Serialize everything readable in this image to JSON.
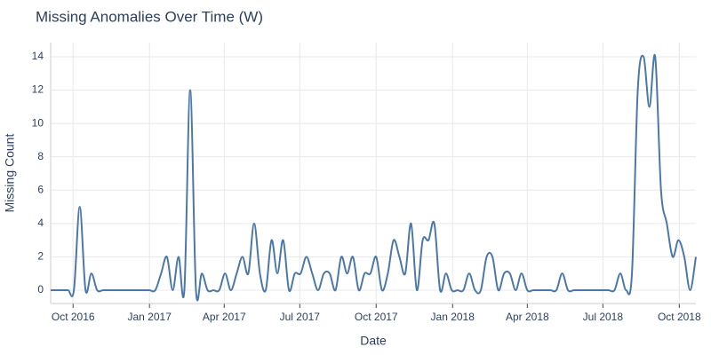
{
  "chart_data": {
    "type": "line",
    "title": "Missing Anomalies Over Time (W)",
    "xlabel": "Date",
    "ylabel": "Missing Count",
    "x": [
      "2016-09-04",
      "2016-09-11",
      "2016-09-18",
      "2016-09-25",
      "2016-10-02",
      "2016-10-09",
      "2016-10-16",
      "2016-10-23",
      "2016-10-30",
      "2016-11-06",
      "2016-11-13",
      "2016-11-20",
      "2016-11-27",
      "2016-12-04",
      "2016-12-11",
      "2016-12-18",
      "2016-12-25",
      "2017-01-01",
      "2017-01-08",
      "2017-01-15",
      "2017-01-22",
      "2017-01-29",
      "2017-02-05",
      "2017-02-12",
      "2017-02-19",
      "2017-02-26",
      "2017-03-05",
      "2017-03-12",
      "2017-03-19",
      "2017-03-26",
      "2017-04-02",
      "2017-04-09",
      "2017-04-16",
      "2017-04-23",
      "2017-04-30",
      "2017-05-07",
      "2017-05-14",
      "2017-05-21",
      "2017-05-28",
      "2017-06-04",
      "2017-06-11",
      "2017-06-18",
      "2017-06-25",
      "2017-07-02",
      "2017-07-09",
      "2017-07-16",
      "2017-07-23",
      "2017-07-30",
      "2017-08-06",
      "2017-08-13",
      "2017-08-20",
      "2017-08-27",
      "2017-09-03",
      "2017-09-10",
      "2017-09-17",
      "2017-09-24",
      "2017-10-01",
      "2017-10-08",
      "2017-10-15",
      "2017-10-22",
      "2017-10-29",
      "2017-11-05",
      "2017-11-12",
      "2017-11-19",
      "2017-11-26",
      "2017-12-03",
      "2017-12-10",
      "2017-12-17",
      "2017-12-24",
      "2017-12-31",
      "2018-01-07",
      "2018-01-14",
      "2018-01-21",
      "2018-01-28",
      "2018-02-04",
      "2018-02-11",
      "2018-02-18",
      "2018-02-25",
      "2018-03-04",
      "2018-03-11",
      "2018-03-18",
      "2018-03-25",
      "2018-04-01",
      "2018-04-08",
      "2018-04-15",
      "2018-04-22",
      "2018-04-29",
      "2018-05-06",
      "2018-05-13",
      "2018-05-20",
      "2018-05-27",
      "2018-06-03",
      "2018-06-10",
      "2018-06-17",
      "2018-06-24",
      "2018-07-01",
      "2018-07-08",
      "2018-07-15",
      "2018-07-22",
      "2018-07-29",
      "2018-08-05",
      "2018-08-12",
      "2018-08-19",
      "2018-08-26",
      "2018-09-02",
      "2018-09-09",
      "2018-09-16",
      "2018-09-23",
      "2018-09-30",
      "2018-10-07",
      "2018-10-14",
      "2018-10-21"
    ],
    "series": [
      {
        "name": "Missing Count",
        "color": "#4c78a8",
        "values": [
          0,
          0,
          0,
          0,
          0,
          5,
          0,
          1,
          0,
          0,
          0,
          0,
          0,
          0,
          0,
          0,
          0,
          0,
          0,
          1,
          2,
          0,
          2,
          0,
          12,
          0,
          1,
          0,
          0,
          0,
          1,
          0,
          1,
          2,
          1,
          4,
          1,
          0,
          3,
          1,
          3,
          0,
          1,
          1,
          2,
          1,
          0,
          1,
          1,
          0,
          2,
          1,
          2,
          0,
          1,
          1,
          2,
          0,
          1,
          3,
          2,
          1,
          4,
          0,
          3,
          3,
          4,
          0,
          1,
          0,
          0,
          0,
          1,
          0,
          0,
          2,
          2,
          0,
          1,
          1,
          0,
          1,
          0,
          0,
          0,
          0,
          0,
          0,
          1,
          0,
          0,
          0,
          0,
          0,
          0,
          0,
          0,
          0,
          1,
          0,
          1,
          12,
          14,
          11,
          14,
          6,
          4,
          2,
          3,
          2,
          0,
          2
        ]
      }
    ],
    "xlim": [
      "2016-09-04",
      "2018-10-21"
    ],
    "xticks": [
      {
        "value": "2016-10-01",
        "label": "Oct 2016"
      },
      {
        "value": "2017-01-01",
        "label": "Jan 2017"
      },
      {
        "value": "2017-04-01",
        "label": "Apr 2017"
      },
      {
        "value": "2017-07-01",
        "label": "Jul 2017"
      },
      {
        "value": "2017-10-01",
        "label": "Oct 2017"
      },
      {
        "value": "2018-01-01",
        "label": "Jan 2018"
      },
      {
        "value": "2018-04-01",
        "label": "Apr 2018"
      },
      {
        "value": "2018-07-01",
        "label": "Jul 2018"
      },
      {
        "value": "2018-10-01",
        "label": "Oct 2018"
      }
    ],
    "ylim": [
      -0.8,
      14.85
    ],
    "yticks": [
      0,
      2,
      4,
      6,
      8,
      10,
      12,
      14
    ],
    "grid": true
  }
}
